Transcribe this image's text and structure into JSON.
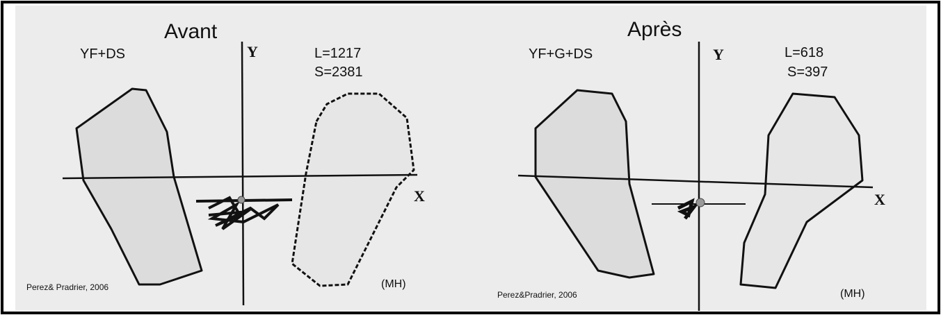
{
  "panels": [
    {
      "title": "Avant",
      "condition": "YF+DS",
      "y_axis": "Y",
      "x_axis": "X",
      "length": "L=1217",
      "surface": "S=2381",
      "credit": "Perez& Pradrier, 2006",
      "mark": "(MH)"
    },
    {
      "title": "Après",
      "condition": "YF+G+DS",
      "y_axis": "Y",
      "x_axis": "X",
      "length": "L=618",
      "surface": "S=397",
      "credit": "Perez&Pradrier, 2006",
      "mark": "(MH)"
    }
  ]
}
